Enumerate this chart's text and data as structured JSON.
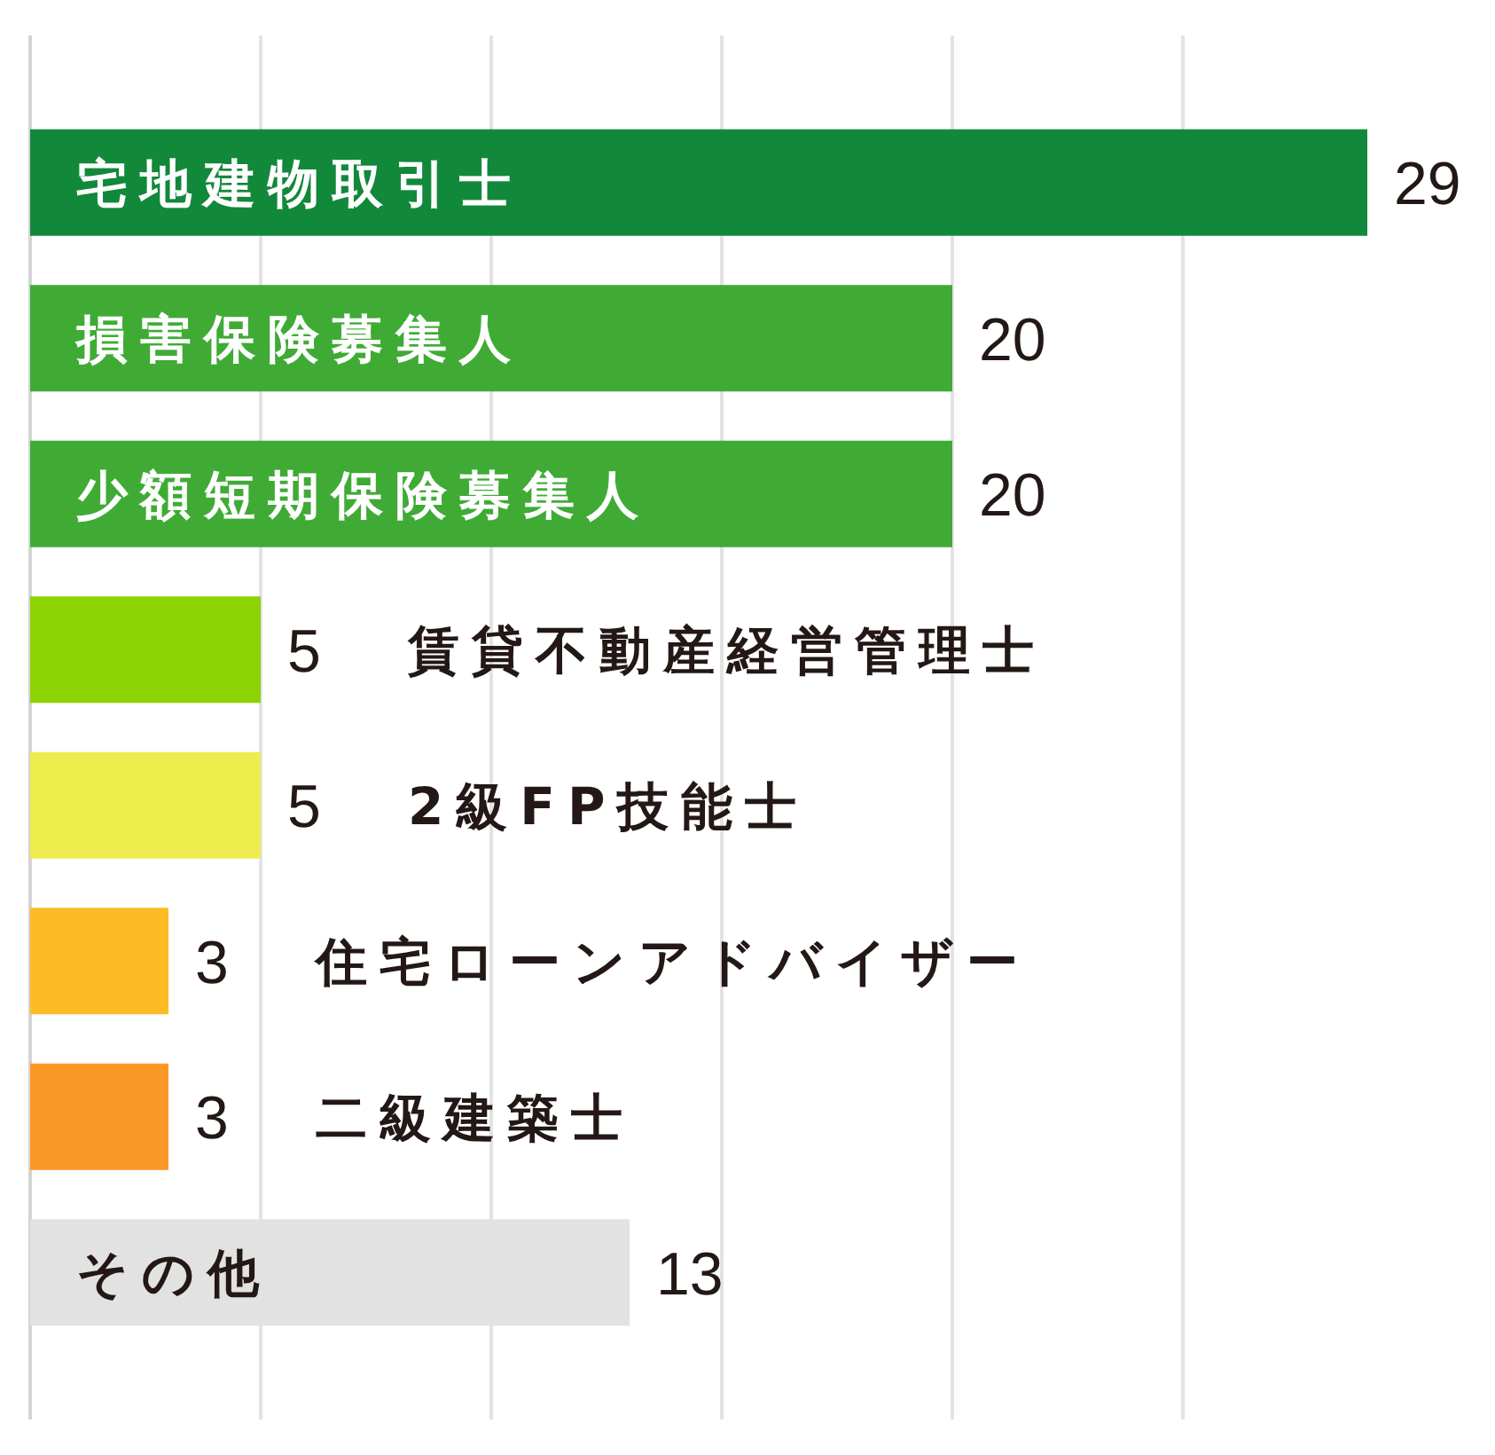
{
  "chart_data": {
    "type": "bar",
    "orientation": "horizontal",
    "categories": [
      "宅地建物取引士",
      "損害保険募集人",
      "少額短期保険募集人",
      "賃貸不動産経営管理士",
      "2級FP技能士",
      "住宅ローンアドバイザー",
      "二級建築士",
      "その他"
    ],
    "values": [
      29,
      20,
      20,
      5,
      5,
      3,
      3,
      13
    ],
    "colors": [
      "#12883a",
      "#3fab35",
      "#3fab35",
      "#8cd304",
      "#eeec4c",
      "#fdbc25",
      "#fc9826",
      "#e2e2e2"
    ],
    "xticks": [
      {
        "value": 0,
        "label": null
      },
      {
        "value": 5,
        "label": null
      },
      {
        "value": 10,
        "label": null
      },
      {
        "value": 15,
        "label": null
      },
      {
        "value": 20,
        "label": null
      },
      {
        "value": 25,
        "label": null
      }
    ],
    "grid": "x",
    "tick_labels": "y",
    "data_labels": true
  }
}
